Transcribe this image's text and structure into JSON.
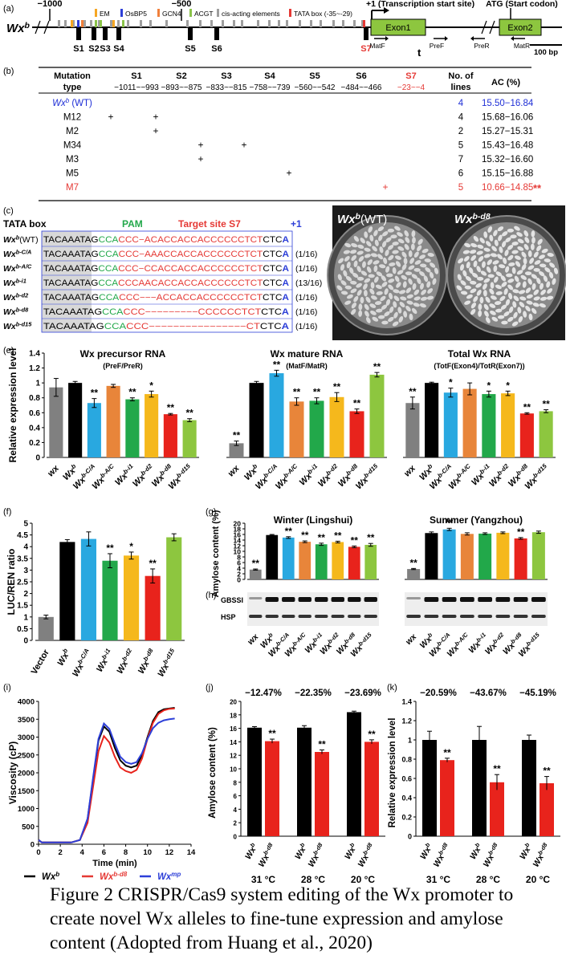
{
  "panelA": {
    "label": "(a)",
    "gene": "Wx",
    "gene_sup": "b",
    "ticks": [
      "−1000",
      "−500"
    ],
    "legend": [
      {
        "name": "EM",
        "color": "#f5a623"
      },
      {
        "name": "OsBP5",
        "color": "#2d3fd8"
      },
      {
        "name": "GCN4",
        "color": "#f0803c"
      },
      {
        "name": "ACGT",
        "color": "#8bc34a"
      },
      {
        "name": "cis-acting elements",
        "color": "#9e9e9e"
      },
      {
        "name": "TATA box (-35~-29)",
        "color": "#e53935"
      }
    ],
    "tss": "+1 (Transcription start site)",
    "atg": "ATG (Start codon)",
    "exon1": "Exon1",
    "exon2": "Exon2",
    "t_mark": "t",
    "sites": [
      "S1",
      "S2",
      "S3",
      "S4",
      "S5",
      "S6",
      "S7"
    ],
    "primers": [
      "MatF",
      "PreF",
      "PreR",
      "MatR"
    ],
    "scale": "100 bp"
  },
  "panelB": {
    "label": "(b)",
    "headers": {
      "mutation": "Mutation",
      "type": "type",
      "sites": [
        "S1",
        "S2",
        "S3",
        "S4",
        "S5",
        "S6",
        "S7"
      ],
      "lines": "No. of",
      "lines2": "lines",
      "ac": "AC (%)"
    },
    "ranges": [
      "−1011~−993",
      "−893~−875",
      "−833~−815",
      "−758~−739",
      "−560~−542",
      "−484~−466",
      "−23~−4"
    ],
    "rows": [
      {
        "name": "Wx",
        "sup": "b",
        "suffix": " (WT)",
        "marks": [],
        "lines": "4",
        "ac": "15.50−16.84",
        "color": "#1f2fd6"
      },
      {
        "name": "M12",
        "marks": [
          0,
          1
        ],
        "lines": "4",
        "ac": "15.68−16.06"
      },
      {
        "name": "M2",
        "marks": [
          1
        ],
        "lines": "2",
        "ac": "15.27−15.31"
      },
      {
        "name": "M34",
        "marks": [
          2,
          3
        ],
        "lines": "5",
        "ac": "15.43−16.48"
      },
      {
        "name": "M3",
        "marks": [
          2
        ],
        "lines": "7",
        "ac": "15.32−16.60"
      },
      {
        "name": "M5",
        "marks": [
          4
        ],
        "lines": "6",
        "ac": "15.15−16.88"
      },
      {
        "name": "M7",
        "marks": [
          6
        ],
        "lines": "5",
        "ac": "10.66−14.85",
        "sig": "**",
        "color": "#e53935"
      }
    ],
    "plus": "+"
  },
  "panelC": {
    "label": "(c)",
    "tata": "TATA box",
    "pam": "PAM",
    "target": "Target site S7",
    "plus1": "+1",
    "rows": [
      {
        "name": "Wx",
        "sup": "b",
        "suffix": "(WT)",
        "seq": [
          "TACAAATA",
          "G",
          "CCA",
          "CCC−ACACCACCACCCCCCTCT",
          "CTC",
          "A"
        ],
        "ratio": ""
      },
      {
        "name": "Wx",
        "sup": "b-C/A",
        "suffix": "",
        "seq": [
          "TACAAATA",
          "G",
          "CCA",
          "CCC−AAACCACCACCCCCCTCT",
          "CTC",
          "A"
        ],
        "ratio": "(1/16)"
      },
      {
        "name": "Wx",
        "sup": "b-A/C",
        "suffix": "",
        "seq": [
          "TACAAATA",
          "G",
          "CCA",
          "CCC−CCACCACCACCCCCCTCT",
          "CTC",
          "A"
        ],
        "ratio": "(1/16)"
      },
      {
        "name": "Wx",
        "sup": "b-i1",
        "suffix": "",
        "seq": [
          "TACAAATA",
          "G",
          "CCA",
          "CCCAACACCACCACCCCCCTCT",
          "CTC",
          "A"
        ],
        "ratio": "(13/16)"
      },
      {
        "name": "Wx",
        "sup": "b-d2",
        "suffix": "",
        "seq": [
          "TACAAATA",
          "G",
          "CCA",
          "CCC−−−ACCACCACCCCCCTCT",
          "CTC",
          "A"
        ],
        "ratio": "(1/16)"
      },
      {
        "name": "Wx",
        "sup": "b-d8",
        "suffix": "",
        "seq": [
          "TACAAATA",
          "G",
          "CCA",
          "CCC−−−−−−−−−CCCCCCTCT",
          "CTC",
          "A"
        ],
        "ratio": "(1/16)"
      },
      {
        "name": "Wx",
        "sup": "b-d15",
        "suffix": "",
        "seq": [
          "TACAAATA",
          "G",
          "CCA",
          "CCC−−−−−−−−−−−−−−−−CT",
          "CTC",
          "A"
        ],
        "ratio": "(1/16)"
      }
    ]
  },
  "panelD": {
    "label": "(d)",
    "left": "Wx",
    "left_sup": "b",
    "left_suffix": "(WT)",
    "right": "Wx",
    "right_sup": "b-d8"
  },
  "panelE": {
    "label": "(e)",
    "ylabel": "Relative expression level",
    "yticks": [
      "0",
      "0.2",
      "0.4",
      "0.6",
      "0.8",
      "1",
      "1.2",
      "1.4"
    ],
    "titles": [
      [
        "Wx precursor RNA",
        "(PreF/PreR)"
      ],
      [
        "Wx mature RNA",
        "(MatF/MatR)"
      ],
      [
        "Total Wx RNA",
        "(TotF(Exon4)/TotR(Exon7))"
      ]
    ],
    "sig": [
      [
        "",
        "",
        "**",
        "",
        "**",
        "*",
        "**",
        "**"
      ],
      [
        "**",
        "",
        "**",
        "**",
        "**",
        "**",
        "**",
        "**"
      ],
      [
        "**",
        "",
        "*",
        "",
        "*",
        "*",
        "**",
        "**"
      ]
    ],
    "xlabels": [
      {
        "t": "wx",
        "s": ""
      },
      {
        "t": "Wx",
        "s": "b"
      },
      {
        "t": "Wx",
        "s": "b-C/A"
      },
      {
        "t": "Wx",
        "s": "b-A/C"
      },
      {
        "t": "Wx",
        "s": "b-i1"
      },
      {
        "t": "Wx",
        "s": "b-d2"
      },
      {
        "t": "Wx",
        "s": "b-d8"
      },
      {
        "t": "Wx",
        "s": "b-d15"
      }
    ]
  },
  "panelF": {
    "label": "(f)",
    "ylabel": "LUC/REN ratio",
    "yticks": [
      "0",
      "0.5",
      "1",
      "1.5",
      "2",
      "2.5",
      "3",
      "3.5",
      "4",
      "4.5",
      "5"
    ],
    "sig": [
      "",
      "",
      "",
      "**",
      "*",
      "**",
      ""
    ],
    "xlabels": [
      {
        "t": "Vector",
        "s": ""
      },
      {
        "t": "Wx",
        "s": "b"
      },
      {
        "t": "Wx",
        "s": "b-C/A"
      },
      {
        "t": "Wx",
        "s": "b-i1"
      },
      {
        "t": "Wx",
        "s": "b-d2"
      },
      {
        "t": "Wx",
        "s": "b-d8"
      },
      {
        "t": "Wx",
        "s": "b-d15"
      }
    ]
  },
  "panelG": {
    "label": "(g)",
    "ylabel": "Amylose content (%)",
    "yticks": [
      "0",
      "2",
      "4",
      "6",
      "8",
      "10",
      "12",
      "14",
      "16",
      "18",
      "20"
    ],
    "titles": [
      "Winter (Lingshui)",
      "Summer (Yangzhou)"
    ],
    "sig": [
      [
        "**",
        "",
        "**",
        "**",
        "**",
        "**",
        "**",
        "**"
      ],
      [
        "**",
        "",
        "**",
        "",
        "",
        "",
        "**",
        ""
      ]
    ]
  },
  "panelH": {
    "label": "(h)",
    "bands": [
      "GBSSI",
      "HSP"
    ],
    "xlabels": [
      {
        "t": "wx",
        "s": ""
      },
      {
        "t": "Wx",
        "s": "b"
      },
      {
        "t": "Wx",
        "s": "b-C/A"
      },
      {
        "t": "Wx",
        "s": "b-A/C"
      },
      {
        "t": "Wx",
        "s": "b-i1"
      },
      {
        "t": "Wx",
        "s": "b-d2"
      },
      {
        "t": "Wx",
        "s": "b-d8"
      },
      {
        "t": "Wx",
        "s": "b-d15"
      }
    ]
  },
  "panelI": {
    "label": "(i)",
    "ylabel": "Viscosity (cP)",
    "xlabel": "Time (min)",
    "yticks": [
      "0",
      "500",
      "1000",
      "1500",
      "2000",
      "2500",
      "3000",
      "3500",
      "4000"
    ],
    "xticks": [
      "0",
      "2",
      "4",
      "6",
      "8",
      "10",
      "12",
      "14"
    ],
    "legend": [
      {
        "t": "Wx",
        "s": "b",
        "color": "#000000"
      },
      {
        "t": "Wx",
        "s": "b-d8",
        "color": "#e53935"
      },
      {
        "t": "Wx",
        "s": "mp",
        "color": "#2d3fd8"
      }
    ]
  },
  "panelJ": {
    "label": "(j)",
    "ylabel": "Amylose content (%)",
    "yticks": [
      "0",
      "2",
      "4",
      "6",
      "8",
      "10",
      "12",
      "14",
      "16",
      "18",
      "20"
    ],
    "pct": [
      "−12.47%",
      "−22.35%",
      "−23.69%"
    ],
    "temps": [
      "31 °C",
      "28 °C",
      "20 °C"
    ],
    "bar_labels": [
      {
        "t": "Wx",
        "s": "b"
      },
      {
        "t": "Wx",
        "s": "b-d8"
      }
    ],
    "sig": "**"
  },
  "panelK": {
    "label": "(k)",
    "ylabel": "Relative expression level",
    "yticks": [
      "0",
      "0.2",
      "0.4",
      "0.6",
      "0.8",
      "1",
      "1.2",
      "1.4"
    ],
    "pct": [
      "−20.59%",
      "−43.67%",
      "−45.19%"
    ],
    "temps": [
      "31 °C",
      "28 °C",
      "20 °C"
    ],
    "bar_labels": [
      {
        "t": "Wx",
        "s": "b"
      },
      {
        "t": "Wx",
        "s": "b-d8"
      }
    ],
    "sig": "**"
  },
  "caption": "Figure 2 CRISPR/Cas9 system editing of the Wx promoter to create novel Wx alleles to fine-tune expression and amylose content (Adopted from Huang et al., 2020)",
  "colors": {
    "wx": "#808080",
    "Wxb": "#000000",
    "C/A": "#29a8e0",
    "A/C": "#e8853a",
    "i1": "#22a84a",
    "d2": "#f5b81c",
    "d8": "#e8231c",
    "d15": "#8dc63f",
    "vector": "#808080"
  },
  "chart_data": [
    {
      "type": "bar",
      "panel": "e-precursor",
      "categories": [
        "wx",
        "Wxb",
        "Wxb-C/A",
        "Wxb-A/C",
        "Wxb-i1",
        "Wxb-d2",
        "Wxb-d8",
        "Wxb-d15"
      ],
      "values": [
        0.94,
        1.0,
        0.73,
        0.96,
        0.78,
        0.85,
        0.58,
        0.5
      ],
      "errors": [
        0.12,
        0.02,
        0.06,
        0.02,
        0.02,
        0.04,
        0.01,
        0.02
      ],
      "ylim": [
        0,
        1.4
      ]
    },
    {
      "type": "bar",
      "panel": "e-mature",
      "categories": [
        "wx",
        "Wxb",
        "Wxb-C/A",
        "Wxb-A/C",
        "Wxb-i1",
        "Wxb-d2",
        "Wxb-d8",
        "Wxb-d15"
      ],
      "values": [
        0.19,
        1.0,
        1.13,
        0.75,
        0.76,
        0.81,
        0.62,
        1.11
      ],
      "errors": [
        0.03,
        0.02,
        0.04,
        0.05,
        0.04,
        0.06,
        0.03,
        0.03
      ],
      "ylim": [
        0,
        1.4
      ]
    },
    {
      "type": "bar",
      "panel": "e-total",
      "categories": [
        "wx",
        "Wxb",
        "Wxb-C/A",
        "Wxb-A/C",
        "Wxb-i1",
        "Wxb-d2",
        "Wxb-d8",
        "Wxb-d15"
      ],
      "values": [
        0.73,
        1.0,
        0.87,
        0.92,
        0.85,
        0.86,
        0.59,
        0.62
      ],
      "errors": [
        0.08,
        0.01,
        0.06,
        0.08,
        0.04,
        0.03,
        0.01,
        0.02
      ],
      "ylim": [
        0,
        1.4
      ]
    },
    {
      "type": "bar",
      "panel": "f",
      "categories": [
        "Vector",
        "Wxb",
        "Wxb-C/A",
        "Wxb-i1",
        "Wxb-d2",
        "Wxb-d8",
        "Wxb-d15"
      ],
      "values": [
        1.0,
        4.2,
        4.33,
        3.4,
        3.62,
        2.75,
        4.4
      ],
      "errors": [
        0.08,
        0.1,
        0.3,
        0.3,
        0.15,
        0.3,
        0.15
      ],
      "ylim": [
        0,
        5
      ]
    },
    {
      "type": "bar",
      "panel": "g-winter",
      "categories": [
        "wx",
        "Wxb",
        "Wxb-C/A",
        "Wxb-A/C",
        "Wxb-i1",
        "Wxb-d2",
        "Wxb-d8",
        "Wxb-d15"
      ],
      "values": [
        3.5,
        15.8,
        14.9,
        13.4,
        12.5,
        13.3,
        11.6,
        12.3
      ],
      "errors": [
        0.2,
        0.2,
        0.3,
        0.3,
        0.4,
        0.3,
        0.3,
        0.5
      ],
      "ylim": [
        0,
        20
      ]
    },
    {
      "type": "bar",
      "panel": "g-summer",
      "categories": [
        "wx",
        "Wxb",
        "Wxb-C/A",
        "Wxb-A/C",
        "Wxb-i1",
        "Wxb-d2",
        "Wxb-d8",
        "Wxb-d15"
      ],
      "values": [
        3.7,
        16.5,
        17.8,
        16.2,
        16.3,
        16.6,
        14.6,
        16.8
      ],
      "errors": [
        0.2,
        0.4,
        0.4,
        0.4,
        0.3,
        0.3,
        0.3,
        0.4
      ],
      "ylim": [
        0,
        20
      ]
    },
    {
      "type": "line",
      "panel": "i",
      "xlim": [
        0,
        14
      ],
      "ylim": [
        0,
        4000
      ],
      "series": [
        {
          "name": "Wxb",
          "x": [
            0,
            0.3,
            1,
            2,
            3,
            3.8,
            4.5,
            5,
            5.5,
            6,
            6.5,
            7,
            7.5,
            8,
            8.5,
            9,
            9.5,
            10,
            10.5,
            11,
            11.5,
            12,
            12.5
          ],
          "values": [
            120,
            50,
            50,
            50,
            50,
            120,
            700,
            1800,
            2900,
            3300,
            3150,
            2700,
            2350,
            2200,
            2150,
            2200,
            2500,
            3000,
            3450,
            3700,
            3780,
            3800,
            3820
          ]
        },
        {
          "name": "Wxb-d8",
          "x": [
            0,
            0.3,
            1,
            2,
            3,
            3.8,
            4.5,
            5,
            5.5,
            6,
            6.5,
            7,
            7.5,
            8,
            8.5,
            9,
            9.5,
            10,
            10.5,
            11,
            11.5,
            12,
            12.5
          ],
          "values": [
            120,
            50,
            50,
            50,
            50,
            120,
            600,
            1600,
            2600,
            3030,
            2850,
            2450,
            2150,
            2050,
            2000,
            2080,
            2400,
            2950,
            3400,
            3650,
            3750,
            3790,
            3800
          ]
        },
        {
          "name": "Wxmp",
          "x": [
            0,
            0.3,
            1,
            2,
            3,
            3.8,
            4.5,
            5,
            5.5,
            6,
            6.5,
            7,
            7.5,
            8,
            8.5,
            9,
            9.5,
            10,
            10.5,
            11,
            11.5,
            12,
            12.5
          ],
          "values": [
            120,
            50,
            50,
            50,
            50,
            120,
            720,
            1850,
            2950,
            3380,
            3230,
            2820,
            2450,
            2300,
            2250,
            2300,
            2550,
            2950,
            3250,
            3400,
            3470,
            3500,
            3520
          ]
        }
      ]
    },
    {
      "type": "bar",
      "panel": "j",
      "categories": [
        "31 °C",
        "28 °C",
        "20 °C"
      ],
      "series": [
        {
          "name": "Wxb",
          "values": [
            16.1,
            16.1,
            18.4
          ],
          "errors": [
            0.15,
            0.3,
            0.15
          ]
        },
        {
          "name": "Wxb-d8",
          "values": [
            14.1,
            12.5,
            14.0
          ],
          "errors": [
            0.3,
            0.3,
            0.3
          ]
        }
      ],
      "ylim": [
        0,
        20
      ]
    },
    {
      "type": "bar",
      "panel": "k",
      "categories": [
        "31 °C",
        "28 °C",
        "20 °C"
      ],
      "series": [
        {
          "name": "Wxb",
          "values": [
            1.0,
            1.0,
            1.0
          ],
          "errors": [
            0.09,
            0.14,
            0.05
          ]
        },
        {
          "name": "Wxb-d8",
          "values": [
            0.79,
            0.56,
            0.55
          ],
          "errors": [
            0.02,
            0.08,
            0.07
          ]
        }
      ],
      "ylim": [
        0,
        1.4
      ]
    }
  ]
}
